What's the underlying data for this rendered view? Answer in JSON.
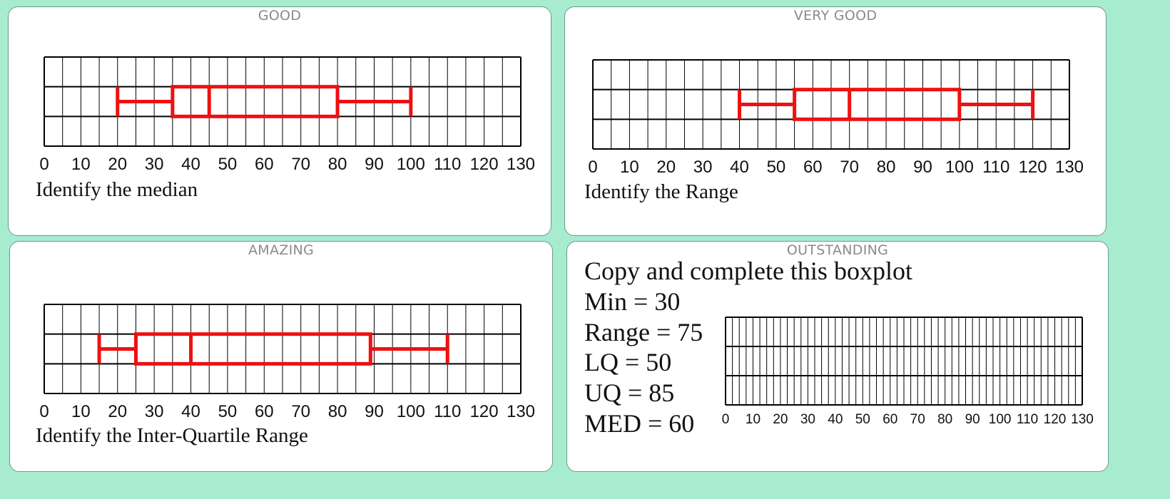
{
  "colors": {
    "background": "#a8ecd0",
    "card": "#ffffff",
    "box": "#ee1111",
    "grid": "#000000"
  },
  "cards": [
    {
      "title": "GOOD",
      "prompt": "Identify the median"
    },
    {
      "title": "VERY GOOD",
      "prompt": "Identify the Range"
    },
    {
      "title": "AMAZING",
      "prompt": "Identify the Inter-Quartile Range"
    },
    {
      "title": "OUTSTANDING",
      "prompt": "Copy and complete this boxplot",
      "stats": [
        "Min = 30",
        "Range = 75",
        "LQ = 50",
        "UQ = 85",
        "MED = 60"
      ]
    }
  ],
  "chart_data": [
    {
      "type": "boxplot",
      "xlim": [
        0,
        130
      ],
      "grid": true,
      "minor_step": 5,
      "ticks": [
        0,
        10,
        20,
        30,
        40,
        50,
        60,
        70,
        80,
        90,
        100,
        110,
        120,
        130
      ],
      "boxplot": {
        "min": 20,
        "lq": 35,
        "median": 45,
        "uq": 80,
        "max": 100
      }
    },
    {
      "type": "boxplot",
      "xlim": [
        0,
        130
      ],
      "grid": true,
      "minor_step": 5,
      "ticks": [
        0,
        10,
        20,
        30,
        40,
        50,
        60,
        70,
        80,
        90,
        100,
        110,
        120,
        130
      ],
      "boxplot": {
        "min": 40,
        "lq": 55,
        "median": 70,
        "uq": 100,
        "max": 120
      }
    },
    {
      "type": "boxplot",
      "xlim": [
        0,
        130
      ],
      "grid": true,
      "minor_step": 5,
      "ticks": [
        0,
        10,
        20,
        30,
        40,
        50,
        60,
        70,
        80,
        90,
        100,
        110,
        120,
        130
      ],
      "boxplot": {
        "min": 15,
        "lq": 25,
        "median": 40,
        "uq": 89,
        "max": 110
      }
    },
    {
      "type": "boxplot",
      "xlim": [
        0,
        130
      ],
      "grid": true,
      "minor_step": 2.5,
      "ticks": [
        0,
        10,
        20,
        30,
        40,
        50,
        60,
        70,
        80,
        90,
        100,
        110,
        120,
        130
      ],
      "boxplot": null
    }
  ]
}
